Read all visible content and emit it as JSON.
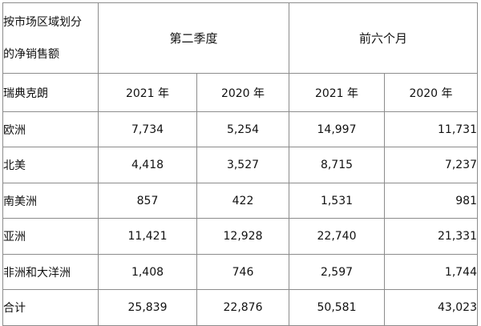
{
  "table": {
    "corner_line1": "按市场区域划分",
    "corner_line2": "的净销售额",
    "period_q2": "第二季度",
    "period_h1": "前六个月",
    "currency_label": "瑞典克朗",
    "year_headers": [
      "2021 年",
      "2020 年",
      "2021 年",
      "2020 年"
    ],
    "rows": [
      {
        "region": "欧洲",
        "values": [
          "7,734",
          "5,254",
          "14,997",
          "11,731"
        ]
      },
      {
        "region": "北美",
        "values": [
          "4,418",
          "3,527",
          "8,715",
          "7,237"
        ]
      },
      {
        "region": "南美洲",
        "values": [
          "857",
          "422",
          "1,531",
          "981"
        ]
      },
      {
        "region": "亚洲",
        "values": [
          "11,421",
          "12,928",
          "22,740",
          "21,331"
        ]
      },
      {
        "region": "非洲和大洋洲",
        "values": [
          "1,408",
          "746",
          "2,597",
          "1,744"
        ]
      },
      {
        "region": "合计",
        "values": [
          "25,839",
          "22,876",
          "50,581",
          "43,023"
        ]
      }
    ]
  }
}
